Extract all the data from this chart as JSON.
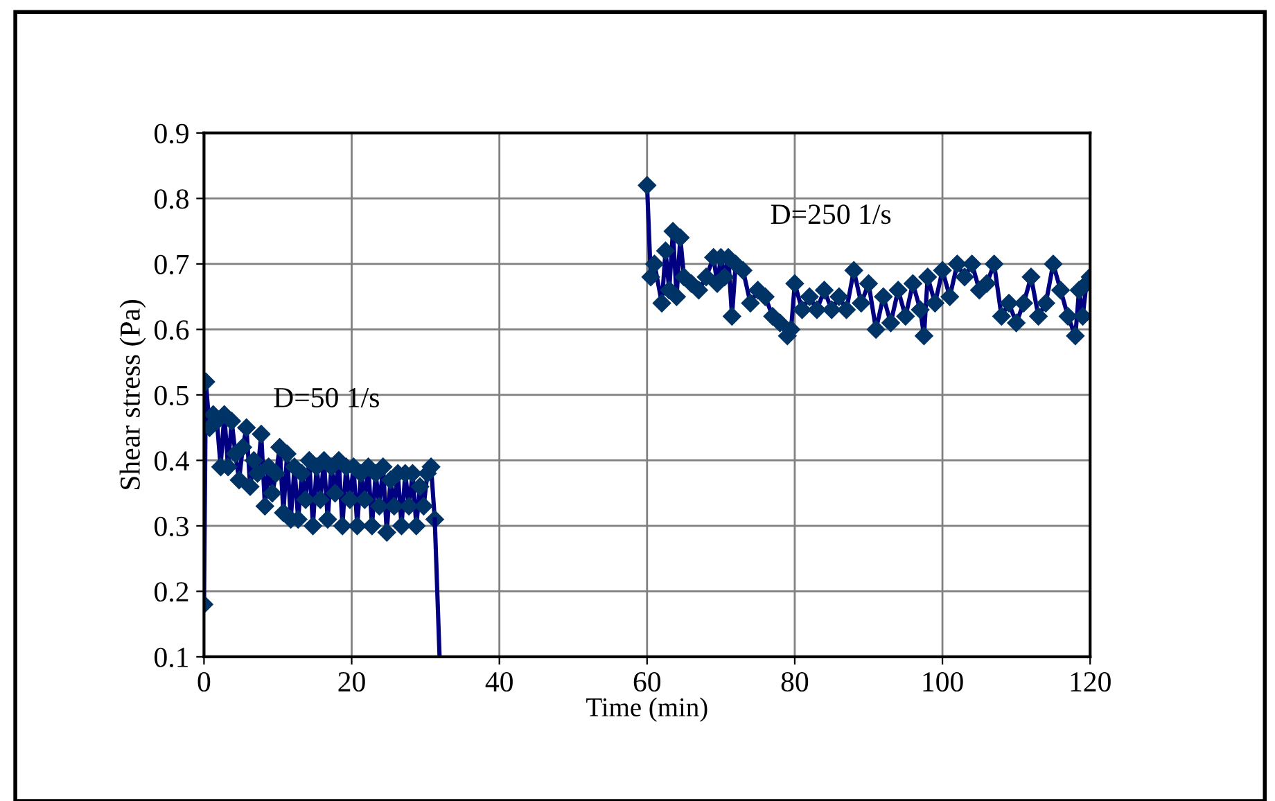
{
  "chart_data": {
    "type": "line",
    "xlabel": "Time (min)",
    "ylabel": "Shear stress (Pa)",
    "xlim": [
      0,
      120
    ],
    "xticks": [
      0,
      20,
      40,
      60,
      80,
      100,
      120
    ],
    "ylim": [
      0.1,
      0.9
    ],
    "yticks": [
      0.1,
      0.2,
      0.3,
      0.4,
      0.5,
      0.6,
      0.7,
      0.8,
      0.9
    ],
    "grid": true,
    "marker": "diamond",
    "line_style": "solid",
    "annotations": [
      "D=50 1/s",
      "D=250 1/s"
    ],
    "series": [
      {
        "color": "#000080",
        "x": [
          0,
          0.25,
          0.75,
          1.25,
          1.75,
          2.25,
          2.75,
          3.25,
          3.75,
          4.25,
          4.75,
          5.25,
          5.75,
          6.25,
          6.75,
          7.25,
          7.75,
          8.25,
          8.75,
          9.25,
          9.75,
          10.25,
          10.75,
          11.25,
          11.75,
          12.25,
          12.75,
          13.25,
          13.75,
          14.25,
          14.75,
          15.25,
          15.75,
          16.25,
          16.75,
          17.25,
          17.75,
          18.25,
          18.75,
          19.25,
          19.75,
          20.25,
          20.75,
          21.25,
          21.75,
          22.25,
          22.75,
          23.25,
          23.75,
          24.25,
          24.75,
          25.25,
          25.75,
          26.25,
          26.75,
          27.25,
          27.75,
          28.25,
          28.75,
          29.25,
          29.75,
          30.25,
          30.75,
          31.25
        ],
        "values": [
          0.18,
          0.52,
          0.45,
          0.47,
          0.46,
          0.39,
          0.47,
          0.39,
          0.46,
          0.41,
          0.37,
          0.42,
          0.45,
          0.36,
          0.4,
          0.38,
          0.44,
          0.33,
          0.39,
          0.35,
          0.38,
          0.42,
          0.32,
          0.41,
          0.31,
          0.39,
          0.31,
          0.38,
          0.34,
          0.4,
          0.3,
          0.39,
          0.34,
          0.4,
          0.31,
          0.39,
          0.35,
          0.4,
          0.3,
          0.39,
          0.34,
          0.39,
          0.3,
          0.38,
          0.34,
          0.39,
          0.3,
          0.38,
          0.33,
          0.39,
          0.29,
          0.37,
          0.33,
          0.38,
          0.3,
          0.38,
          0.33,
          0.38,
          0.3,
          0.36,
          0.33,
          0.38,
          0.39,
          0.31
        ]
      },
      {
        "color": "#000080",
        "marker": "none",
        "x": [
          31.25,
          31.9
        ],
        "values": [
          0.31,
          0.1
        ]
      },
      {
        "color": "#000080",
        "x": [
          60,
          60.5,
          61,
          62,
          62.5,
          63,
          63.5,
          64,
          64.5,
          65,
          66,
          67,
          68,
          69,
          69.5,
          70,
          70.5,
          71,
          71.5,
          72,
          73,
          74,
          75,
          76,
          77,
          78,
          79,
          79.5,
          80,
          81,
          82,
          83,
          84,
          85,
          86,
          87,
          88,
          89,
          90,
          91,
          92,
          93,
          94,
          95,
          96,
          97,
          97.5,
          98,
          99,
          100,
          101,
          102,
          103,
          104,
          105,
          106,
          107,
          108,
          109,
          110,
          111,
          112,
          113,
          114,
          115,
          116,
          117,
          118,
          118.5,
          119,
          119.5,
          120
        ],
        "values": [
          0.82,
          0.68,
          0.7,
          0.64,
          0.72,
          0.66,
          0.75,
          0.65,
          0.74,
          0.68,
          0.67,
          0.66,
          0.68,
          0.71,
          0.67,
          0.71,
          0.68,
          0.71,
          0.62,
          0.7,
          0.69,
          0.64,
          0.66,
          0.65,
          0.62,
          0.61,
          0.59,
          0.6,
          0.67,
          0.63,
          0.65,
          0.63,
          0.66,
          0.63,
          0.65,
          0.63,
          0.69,
          0.64,
          0.67,
          0.6,
          0.65,
          0.61,
          0.66,
          0.62,
          0.67,
          0.63,
          0.59,
          0.68,
          0.64,
          0.69,
          0.65,
          0.7,
          0.68,
          0.7,
          0.66,
          0.67,
          0.7,
          0.62,
          0.64,
          0.61,
          0.64,
          0.68,
          0.62,
          0.64,
          0.7,
          0.66,
          0.62,
          0.59,
          0.66,
          0.62,
          0.67,
          0.68
        ]
      }
    ]
  }
}
